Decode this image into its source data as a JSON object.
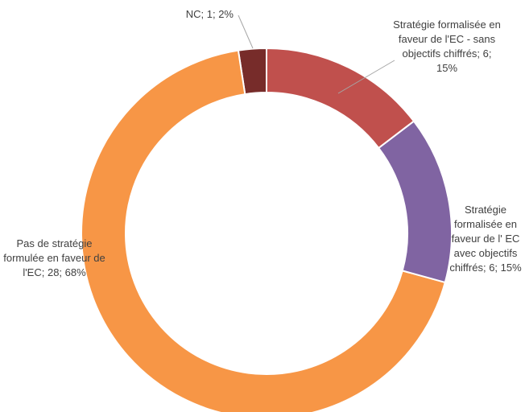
{
  "chart_data": {
    "type": "donut",
    "categories": [
      "Stratégie formalisée en faveur de l'EC - sans objectifs chiffrés",
      "Stratégie formalisée en faveur de l' EC avec objectifs chiffrés",
      "Pas de stratégie formulée en faveur de l'EC",
      "NC"
    ],
    "values": [
      6,
      6,
      28,
      1
    ],
    "value_labels": [
      "Stratégie formalisée en faveur de l'EC - sans objectifs chiffrés; 6; 15%",
      "Stratégie formalisée en faveur de l' EC avec objectifs chiffrés; 6; 15%",
      "Pas de stratégie formulée en faveur de l'EC; 28; 68%",
      "NC; 1; 2%"
    ],
    "colors": [
      "#c0504d",
      "#8064a2",
      "#f79646",
      "#772c2a"
    ]
  }
}
